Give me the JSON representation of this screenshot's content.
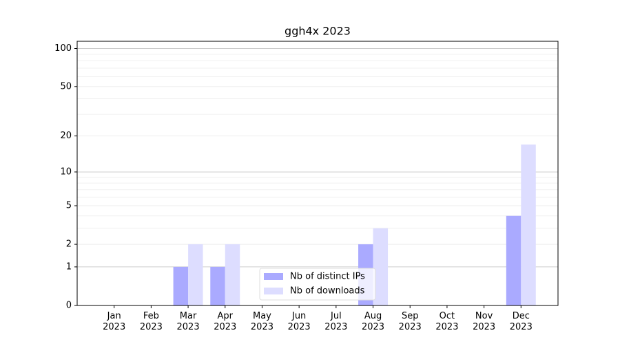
{
  "chart_data": {
    "type": "bar",
    "title": "ggh4x 2023",
    "categories": [
      "Jan 2023",
      "Feb 2023",
      "Mar 2023",
      "Apr 2023",
      "May 2023",
      "Jun 2023",
      "Jul 2023",
      "Aug 2023",
      "Sep 2023",
      "Oct 2023",
      "Nov 2023",
      "Dec 2023"
    ],
    "series": [
      {
        "name": "Nb of distinct IPs",
        "color": "#aaaaff",
        "values": [
          0,
          0,
          1,
          1,
          0,
          0,
          0,
          2,
          0,
          0,
          0,
          4
        ]
      },
      {
        "name": "Nb of downloads",
        "color": "#ddddff",
        "values": [
          0,
          0,
          2,
          2,
          0,
          0,
          0,
          3,
          0,
          0,
          0,
          17
        ]
      }
    ],
    "yscale": "log1p",
    "ylim": [
      0,
      114
    ],
    "yticks": [
      0,
      1,
      2,
      5,
      10,
      20,
      50,
      100
    ],
    "yminor": [
      3,
      4,
      6,
      7,
      8,
      9,
      30,
      40,
      60,
      70,
      80,
      90
    ],
    "grid": true,
    "legend": "lower center"
  }
}
